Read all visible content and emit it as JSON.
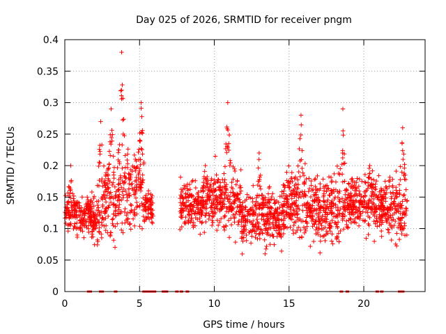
{
  "chart_data": {
    "type": "scatter",
    "title": "Day 025 of 2026, SRMTID for receiver pngm",
    "xlabel": "GPS time / hours",
    "ylabel": "SRMTID / TECUs",
    "xlim": [
      0,
      24.1
    ],
    "ylim": [
      0,
      0.4
    ],
    "x_ticks": [
      0,
      5,
      10,
      15,
      20
    ],
    "y_ticks": [
      0,
      0.05,
      0.1,
      0.15,
      0.2,
      0.25,
      0.3,
      0.35,
      0.4
    ],
    "x_tick_labels": [
      "0",
      "5",
      "10",
      "15",
      "20"
    ],
    "y_tick_labels": [
      "0",
      "0.05",
      "0.1",
      "0.15",
      "0.2",
      "0.25",
      "0.3",
      "0.35",
      "0.4"
    ],
    "grid": true,
    "marker": "+",
    "color": "#ff0000",
    "series": [
      {
        "name": "SRMTID",
        "segments": [
          {
            "x0": 0.0,
            "x1": 0.8,
            "mean": 0.125,
            "spread": 0.025,
            "peak_x": 0.4,
            "peak": 0.2
          },
          {
            "x0": 0.8,
            "x1": 1.8,
            "mean": 0.115,
            "spread": 0.03,
            "peak_x": 1.5,
            "peak": 0.15
          },
          {
            "x0": 1.8,
            "x1": 2.5,
            "mean": 0.11,
            "spread": 0.04,
            "peak_x": 2.4,
            "peak": 0.27
          },
          {
            "x0": 2.5,
            "x1": 3.5,
            "mean": 0.14,
            "spread": 0.05,
            "peak_x": 3.1,
            "peak": 0.29
          },
          {
            "x0": 3.5,
            "x1": 4.4,
            "mean": 0.16,
            "spread": 0.07,
            "peak_x": 3.8,
            "peak": 0.38
          },
          {
            "x0": 4.4,
            "x1": 5.3,
            "mean": 0.17,
            "spread": 0.05,
            "peak_x": 5.1,
            "peak": 0.3
          },
          {
            "x0": 5.3,
            "x1": 5.9,
            "mean": 0.13,
            "spread": 0.02,
            "peak_x": 5.6,
            "peak": 0.16
          },
          {
            "x0": 7.7,
            "x1": 9.5,
            "mean": 0.135,
            "spread": 0.035,
            "peak_x": 9.4,
            "peak": 0.2
          },
          {
            "x0": 9.5,
            "x1": 11.8,
            "mean": 0.145,
            "spread": 0.045,
            "peak_x": 10.9,
            "peak": 0.3
          },
          {
            "x0": 11.8,
            "x1": 14.5,
            "mean": 0.115,
            "spread": 0.04,
            "peak_x": 13.0,
            "peak": 0.22
          },
          {
            "x0": 14.5,
            "x1": 16.5,
            "mean": 0.14,
            "spread": 0.05,
            "peak_x": 15.8,
            "peak": 0.28
          },
          {
            "x0": 16.5,
            "x1": 19.0,
            "mean": 0.13,
            "spread": 0.05,
            "peak_x": 18.6,
            "peak": 0.29
          },
          {
            "x0": 19.0,
            "x1": 20.6,
            "mean": 0.14,
            "spread": 0.04,
            "peak_x": 20.4,
            "peak": 0.2
          },
          {
            "x0": 20.6,
            "x1": 22.9,
            "mean": 0.13,
            "spread": 0.04,
            "peak_x": 22.6,
            "peak": 0.26
          }
        ]
      }
    ],
    "zero_points_x": [
      1.6,
      1.7,
      2.4,
      2.5,
      3.4,
      5.3,
      5.4,
      5.6,
      5.8,
      6.0,
      6.6,
      6.8,
      7.5,
      7.8,
      8.2,
      18.5,
      18.9,
      20.9,
      21.2,
      22.4,
      22.6
    ]
  }
}
